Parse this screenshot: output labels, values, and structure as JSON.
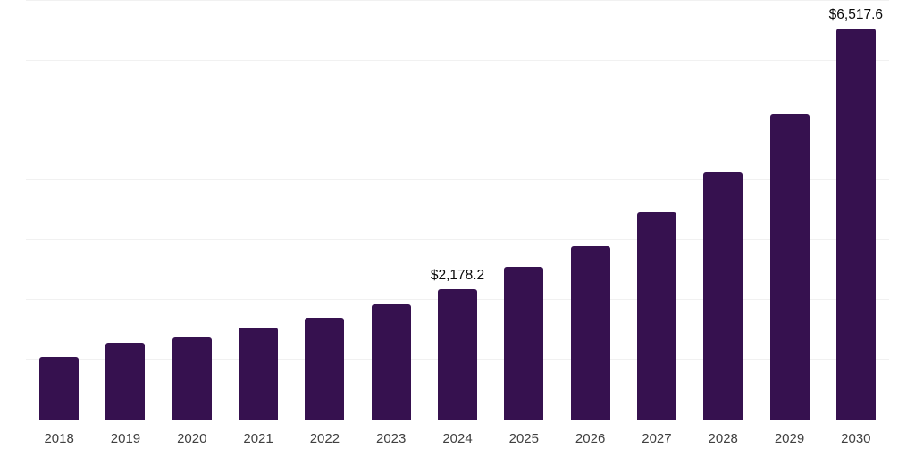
{
  "chart_data": {
    "type": "bar",
    "title": "",
    "xlabel": "",
    "ylabel": "",
    "categories": [
      "2018",
      "2019",
      "2020",
      "2021",
      "2022",
      "2023",
      "2024",
      "2025",
      "2026",
      "2027",
      "2028",
      "2029",
      "2030"
    ],
    "values": [
      1050,
      1275,
      1375,
      1530,
      1700,
      1925,
      2178.2,
      2540,
      2890,
      3450,
      4120,
      5100,
      6517.6
    ],
    "data_labels": {
      "2024": "$2,178.2",
      "2030": "$6,517.6"
    },
    "ylim": [
      0,
      7000
    ],
    "gridline_step": 1000,
    "grid": true,
    "legend": false,
    "colors": {
      "bar": "#36114F",
      "gridline": "#f1f1f1",
      "axis_line": "#414141",
      "tick_label": "#404040",
      "data_label": "#0a0a0a",
      "background": "#ffffff"
    }
  }
}
